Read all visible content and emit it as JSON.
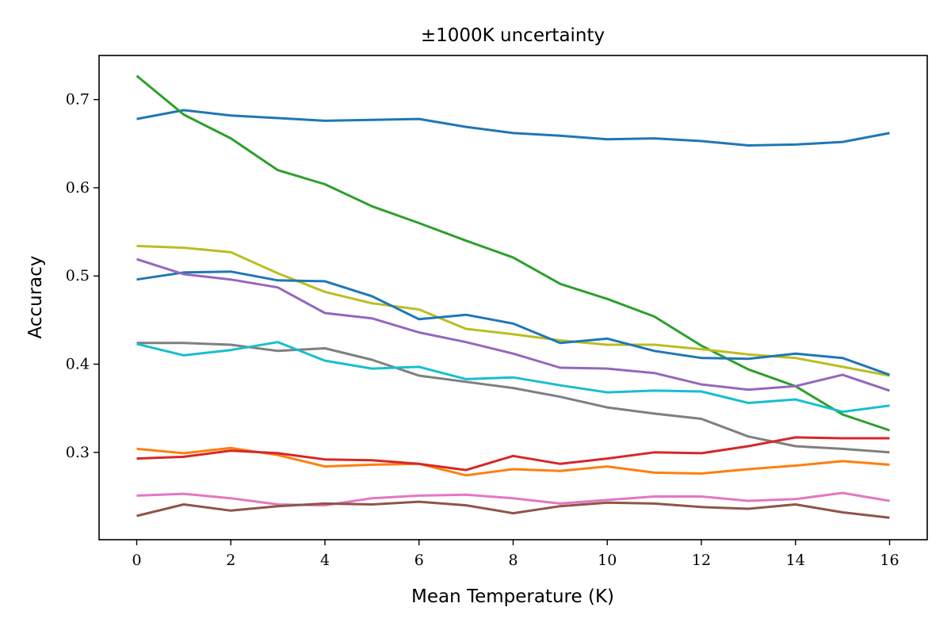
{
  "chart_data": {
    "type": "line",
    "title": "±1000K uncertainty",
    "xlabel": "Mean Temperature (K)",
    "ylabel": "Accuracy",
    "xlim": [
      -0.8,
      16.8
    ],
    "ylim": [
      0.201,
      0.75
    ],
    "xticks": [
      0,
      2,
      4,
      6,
      8,
      10,
      12,
      14,
      16
    ],
    "xtick_labels": [
      "0",
      "2",
      "4",
      "6",
      "8",
      "10",
      "12",
      "14",
      "16"
    ],
    "yticks": [
      0.3,
      0.4,
      0.5,
      0.6,
      0.7
    ],
    "ytick_labels": [
      "0.3",
      "0.4",
      "0.5",
      "0.6",
      "0.7"
    ],
    "grid": false,
    "x": [
      0,
      1,
      2,
      3,
      4,
      5,
      6,
      7,
      8,
      9,
      10,
      11,
      12,
      13,
      14,
      15,
      16
    ],
    "series": [
      {
        "color": "#1f77b4",
        "values": [
          0.678,
          0.688,
          0.682,
          0.679,
          0.676,
          0.677,
          0.678,
          0.669,
          0.662,
          0.659,
          0.655,
          0.656,
          0.653,
          0.648,
          0.649,
          0.652,
          0.662
        ]
      },
      {
        "color": "#2ca02c",
        "values": [
          0.727,
          0.683,
          0.656,
          0.62,
          0.604,
          0.579,
          0.56,
          0.54,
          0.521,
          0.491,
          0.474,
          0.454,
          0.421,
          0.394,
          0.375,
          0.343,
          0.325
        ]
      },
      {
        "color": "#bcbd22",
        "values": [
          0.534,
          0.532,
          0.527,
          0.503,
          0.482,
          0.469,
          0.462,
          0.44,
          0.434,
          0.427,
          0.422,
          0.422,
          0.417,
          0.411,
          0.407,
          0.397,
          0.387
        ]
      },
      {
        "color": "#1f77b4",
        "values": [
          0.496,
          0.504,
          0.505,
          0.495,
          0.494,
          0.477,
          0.451,
          0.456,
          0.446,
          0.424,
          0.429,
          0.415,
          0.407,
          0.406,
          0.412,
          0.407,
          0.388
        ]
      },
      {
        "color": "#9467bd",
        "values": [
          0.519,
          0.502,
          0.496,
          0.487,
          0.458,
          0.452,
          0.436,
          0.425,
          0.412,
          0.396,
          0.395,
          0.39,
          0.377,
          0.371,
          0.375,
          0.388,
          0.37
        ]
      },
      {
        "color": "#7f7f7f",
        "values": [
          0.424,
          0.424,
          0.422,
          0.415,
          0.418,
          0.405,
          0.387,
          0.38,
          0.373,
          0.363,
          0.351,
          0.344,
          0.338,
          0.318,
          0.307,
          0.304,
          0.3
        ]
      },
      {
        "color": "#17becf",
        "values": [
          0.423,
          0.41,
          0.416,
          0.425,
          0.404,
          0.395,
          0.397,
          0.383,
          0.385,
          0.376,
          0.368,
          0.37,
          0.369,
          0.356,
          0.36,
          0.346,
          0.353
        ]
      },
      {
        "color": "#ff7f0e",
        "values": [
          0.304,
          0.299,
          0.305,
          0.297,
          0.284,
          0.286,
          0.287,
          0.274,
          0.281,
          0.279,
          0.284,
          0.277,
          0.276,
          0.281,
          0.285,
          0.29,
          0.286
        ]
      },
      {
        "color": "#d62728",
        "values": [
          0.293,
          0.295,
          0.302,
          0.299,
          0.292,
          0.291,
          0.287,
          0.28,
          0.296,
          0.287,
          0.293,
          0.3,
          0.299,
          0.307,
          0.317,
          0.316,
          0.316
        ]
      },
      {
        "color": "#e377c2",
        "values": [
          0.251,
          0.253,
          0.248,
          0.241,
          0.24,
          0.248,
          0.251,
          0.252,
          0.248,
          0.242,
          0.246,
          0.25,
          0.25,
          0.245,
          0.247,
          0.254,
          0.245
        ]
      },
      {
        "color": "#8c564b",
        "values": [
          0.228,
          0.241,
          0.234,
          0.239,
          0.242,
          0.241,
          0.244,
          0.24,
          0.231,
          0.239,
          0.243,
          0.242,
          0.238,
          0.236,
          0.241,
          0.232,
          0.226
        ]
      }
    ]
  }
}
